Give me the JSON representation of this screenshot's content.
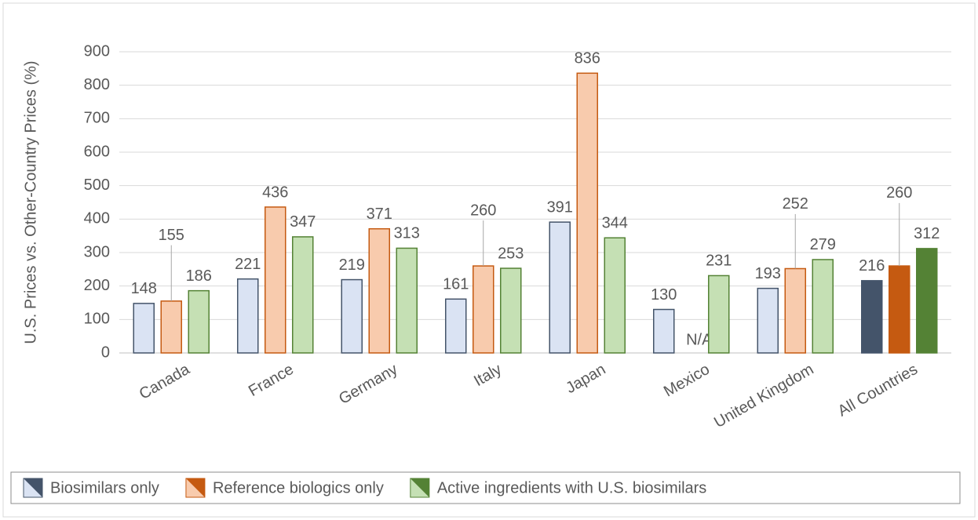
{
  "chart_data": {
    "type": "bar",
    "y_label": "U.S. Prices vs. Other-Country Prices (%)",
    "categories": [
      "Canada",
      "France",
      "Germany",
      "Italy",
      "Japan",
      "Mexico",
      "United Kingdom",
      "All Countries"
    ],
    "series": [
      {
        "name": "Biosimilars only",
        "color": "#44546a",
        "light_color": "#dae3f3",
        "values": [
          148,
          221,
          219,
          161,
          391,
          130,
          193,
          216
        ]
      },
      {
        "name": "Reference biologics only",
        "color": "#c55a11",
        "light_color": "#f8cbad",
        "values": [
          155,
          436,
          371,
          260,
          836,
          null,
          252,
          260
        ],
        "value_labels": [
          "155",
          "436",
          "371",
          "260",
          "836",
          "N/A",
          "252",
          "260"
        ]
      },
      {
        "name": "Active ingredients with U.S. biosimilars",
        "color": "#548235",
        "light_color": "#c5e0b4",
        "values": [
          186,
          347,
          313,
          253,
          344,
          231,
          279,
          312
        ]
      }
    ],
    "ylim": [
      0,
      900
    ],
    "yticks": [
      0,
      100,
      200,
      300,
      400,
      500,
      600,
      700,
      800,
      900
    ],
    "grid": true,
    "legend": "bottom"
  }
}
